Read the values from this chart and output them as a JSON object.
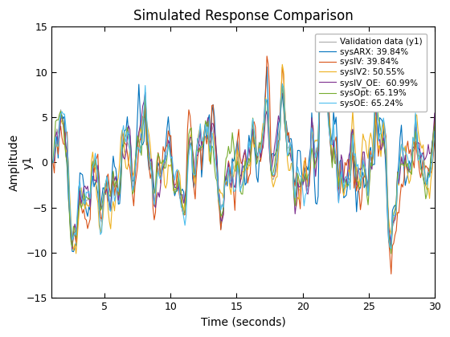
{
  "title": "Simulated Response Comparison",
  "xlabel": "Time (seconds)",
  "ylabel_line1": "Amplitude",
  "ylabel_line2": "y1",
  "xlim": [
    1,
    30
  ],
  "ylim": [
    -15,
    15
  ],
  "xticks": [
    5,
    10,
    15,
    20,
    25,
    30
  ],
  "yticks": [
    -15,
    -10,
    -5,
    0,
    5,
    10,
    15
  ],
  "legend_labels": [
    "Validation data (y1)",
    "sysARX: 39.84%",
    "sysIV: 39.84%",
    "sysIV2: 50.55%",
    "sysIV_OE:  60.99%",
    "sysOpt: 65.19%",
    "sysOE: 65.24%"
  ],
  "line_colors": [
    "#aaaaaa",
    "#0072bd",
    "#d95319",
    "#edb120",
    "#7e2f8e",
    "#77ac30",
    "#4dbeee"
  ],
  "line_widths": [
    0.8,
    0.8,
    0.8,
    0.8,
    0.8,
    0.8,
    0.8
  ],
  "n_points": 300,
  "t_start": 1.0,
  "t_end": 30.0,
  "background_color": "#ffffff"
}
